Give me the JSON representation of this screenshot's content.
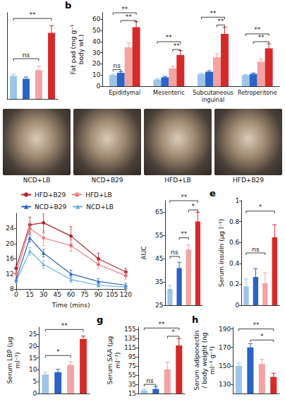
{
  "chart_data": [
    {
      "type": "bar",
      "categories": [
        null,
        null,
        null,
        null
      ],
      "values": [
        8,
        7,
        10,
        23
      ],
      "errors": [
        0.6,
        0.6,
        1.5,
        2.5
      ],
      "colors": [
        "#9ec5e8",
        "#2b63c6",
        "#f4a3a3",
        "#d62a2a"
      ],
      "ylim": [
        0,
        30
      ],
      "tick_labels": false,
      "grid": false,
      "annotations": [
        {
          "text": "ns",
          "from": 0,
          "to": 2,
          "y": 14
        },
        {
          "text": "**",
          "from": 0,
          "to": 3,
          "y": 28
        }
      ]
    },
    {
      "type": "bar",
      "panel": "b",
      "y_label": "Fat pad (mg g⁻¹ body wt.)",
      "categories": [
        "Epididymal",
        "Mesenteric",
        "Subcutaneous inguinal",
        "Retroperitone"
      ],
      "series": [
        {
          "color": "#9ec5e8",
          "values": [
            10,
            6,
            11,
            10
          ],
          "errors": [
            0.8,
            0.6,
            0.8,
            0.6
          ]
        },
        {
          "color": "#2b63c6",
          "values": [
            12,
            8,
            13,
            11
          ],
          "errors": [
            1,
            0.8,
            1,
            0.8
          ]
        },
        {
          "color": "#f4a3a3",
          "values": [
            35,
            16,
            26,
            22
          ],
          "errors": [
            4,
            2,
            3,
            2.5
          ]
        },
        {
          "color": "#d62a2a",
          "values": [
            53,
            28,
            47,
            34
          ],
          "errors": [
            5,
            4,
            6,
            4
          ]
        }
      ],
      "ylim": [
        0,
        66
      ],
      "yticks": [
        0,
        10,
        20,
        30,
        40,
        50,
        60
      ],
      "grid": false,
      "annotations": [
        {
          "text": "ns",
          "category": 0,
          "from": 0,
          "to": 1,
          "y": 15
        },
        {
          "text": "**",
          "category": 0,
          "from": 1,
          "to": 3,
          "y": 59
        },
        {
          "text": "**",
          "category": 0,
          "from": 0,
          "to": 3,
          "y": 66
        },
        {
          "text": "**",
          "category": 1,
          "from": 2,
          "to": 3,
          "y": 33
        },
        {
          "text": "**",
          "category": 1,
          "from": 0,
          "to": 3,
          "y": 40
        },
        {
          "text": "**",
          "category": 2,
          "from": 2,
          "to": 3,
          "y": 55
        },
        {
          "text": "**",
          "category": 2,
          "from": 0,
          "to": 3,
          "y": 62
        },
        {
          "text": "**",
          "category": 3,
          "from": 1,
          "to": 3,
          "y": 40
        },
        {
          "text": "**",
          "category": 3,
          "from": 0,
          "to": 3,
          "y": 47
        }
      ]
    },
    {
      "type": "line",
      "x_label": "Time (mins)",
      "x": [
        0,
        15,
        30,
        60,
        90,
        120
      ],
      "xlim": [
        0,
        120
      ],
      "xticks": [
        0,
        15,
        30,
        45,
        60,
        75,
        90,
        105,
        120
      ],
      "ylim": [
        8,
        28
      ],
      "yticks": [
        8,
        12,
        16,
        20,
        24
      ],
      "grid": false,
      "legend": "top",
      "series": [
        {
          "name": "HFD+B29",
          "color": "#b5262c",
          "marker": "circle",
          "values": [
            13.5,
            25,
            25.5,
            22,
            16,
            12.5
          ],
          "errors": [
            1,
            2,
            2.5,
            2.5,
            1.5,
            1
          ]
        },
        {
          "name": "HFD+LB",
          "color": "#ee8080",
          "marker": "circle",
          "values": [
            12,
            24,
            21.5,
            19.5,
            14.5,
            11.5
          ],
          "errors": [
            1,
            1.5,
            2,
            1.5,
            1,
            1
          ]
        },
        {
          "name": "NCD+B29",
          "color": "#2b63c6",
          "marker": "triangle",
          "values": [
            10.5,
            21.5,
            17.5,
            12,
            10,
            9
          ],
          "errors": [
            0.5,
            1,
            1,
            1,
            0.8,
            0.6
          ]
        },
        {
          "name": "NCD+LB",
          "color": "#6fb0e0",
          "marker": "triangle",
          "values": [
            10,
            18,
            14.5,
            10.5,
            9,
            8.5
          ],
          "errors": [
            0.5,
            1,
            1,
            0.8,
            0.5,
            0.5
          ]
        }
      ]
    },
    {
      "type": "bar",
      "y_label": "AUC",
      "categories": [
        null,
        null,
        null,
        null
      ],
      "values": [
        32,
        41,
        49,
        61
      ],
      "errors": [
        1.5,
        2.5,
        2,
        4
      ],
      "colors": [
        "#9ec5e8",
        "#2b63c6",
        "#f4a3a3",
        "#d62a2a"
      ],
      "ylim": [
        25,
        70
      ],
      "yticks": [
        25,
        35,
        45,
        55,
        65
      ],
      "grid": false,
      "annotations": [
        {
          "text": "ns",
          "from": 0,
          "to": 1,
          "y": 46
        },
        {
          "text": "**",
          "from": 1,
          "to": 2,
          "y": 54
        },
        {
          "text": "*",
          "from": 2,
          "to": 3,
          "y": 66
        },
        {
          "text": "**",
          "from": 0,
          "to": 3,
          "y": 70
        }
      ]
    },
    {
      "type": "bar",
      "panel": "e",
      "y_label": "Serum insulin (μg l⁻¹)",
      "categories": [
        null,
        null,
        null,
        null
      ],
      "values": [
        0.18,
        0.27,
        0.21,
        0.65
      ],
      "errors": [
        0.07,
        0.08,
        0.1,
        0.12
      ],
      "colors": [
        "#9ec5e8",
        "#2b63c6",
        "#f4a3a3",
        "#d62a2a"
      ],
      "ylim": [
        0,
        1
      ],
      "yticks": [
        0,
        0.2,
        0.4,
        0.6,
        0.8,
        1
      ],
      "grid": false,
      "annotations": [
        {
          "text": "ns",
          "from": 0,
          "to": 2,
          "y": 0.5
        },
        {
          "text": "*",
          "from": 0,
          "to": 3,
          "y": 0.9
        }
      ]
    },
    {
      "type": "bar",
      "y_label": "Serum LBP (μg ml⁻¹)",
      "categories": [
        null,
        null,
        null,
        null
      ],
      "values": [
        8,
        9,
        12,
        23
      ],
      "errors": [
        1,
        1.2,
        1.5,
        1.2
      ],
      "colors": [
        "#9ec5e8",
        "#2b63c6",
        "#f4a3a3",
        "#d62a2a"
      ],
      "ylim": [
        0,
        28
      ],
      "yticks": [
        0,
        5,
        10,
        15,
        20,
        25
      ],
      "grid": false,
      "annotations": [
        {
          "text": "*",
          "from": 0,
          "to": 2,
          "y": 16
        },
        {
          "text": "**",
          "from": 0,
          "to": 3,
          "y": 27
        }
      ]
    },
    {
      "type": "bar",
      "panel": "g",
      "y_label": "Serum SAA (μg ml⁻¹)",
      "categories": [
        null,
        null,
        null,
        null
      ],
      "values": [
        22,
        25,
        68,
        120
      ],
      "errors": [
        3,
        5,
        15,
        15
      ],
      "colors": [
        "#9ec5e8",
        "#2b63c6",
        "#f4a3a3",
        "#d62a2a"
      ],
      "ylim": [
        15,
        160
      ],
      "yticks": [
        15,
        35,
        55,
        75,
        95,
        115,
        135,
        155
      ],
      "grid": false,
      "annotations": [
        {
          "text": "ns",
          "from": 0,
          "to": 1,
          "y": 35
        },
        {
          "text": "*",
          "from": 2,
          "to": 3,
          "y": 140
        },
        {
          "text": "**",
          "from": 0,
          "to": 3,
          "y": 158
        }
      ]
    },
    {
      "type": "bar",
      "panel": "h",
      "y_label": "Serum adiponectin / body weight (ng ml⁻¹ g⁻¹)",
      "categories": [
        null,
        null,
        null,
        null
      ],
      "values": [
        150,
        170,
        152,
        138
      ],
      "errors": [
        3,
        4,
        5,
        4
      ],
      "colors": [
        "#9ec5e8",
        "#2b63c6",
        "#f4a3a3",
        "#d62a2a"
      ],
      "ylim": [
        120,
        192
      ],
      "yticks": [
        130,
        150,
        170,
        190
      ],
      "grid": false,
      "annotations": [
        {
          "text": "*",
          "from": 1,
          "to": 3,
          "y": 178
        },
        {
          "text": "**",
          "from": 0,
          "to": 3,
          "y": 190
        }
      ]
    }
  ],
  "images": {
    "captions": [
      "NCD+LB",
      "NCD+B29",
      "HFD+LB",
      "HFD+B29"
    ]
  }
}
